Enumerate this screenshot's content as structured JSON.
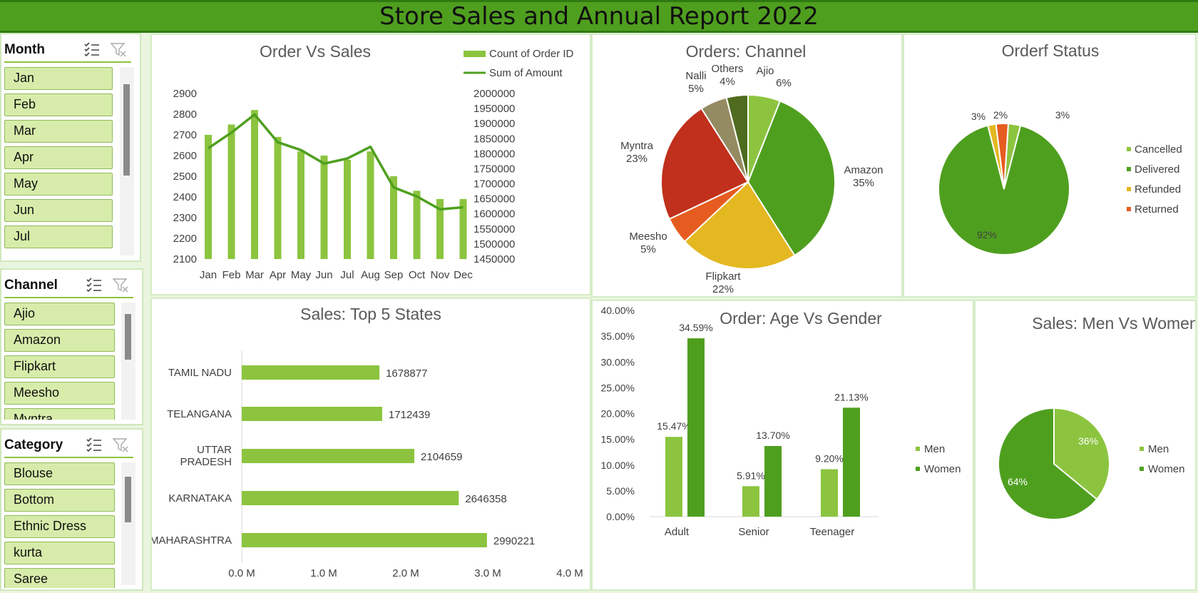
{
  "header": {
    "title": "Store Sales and Annual Report 2022"
  },
  "slicers": {
    "month": {
      "title": "Month",
      "items": [
        "Jan",
        "Feb",
        "Mar",
        "Apr",
        "May",
        "Jun",
        "Jul"
      ]
    },
    "channel": {
      "title": "Channel",
      "items": [
        "Ajio",
        "Amazon",
        "Flipkart",
        "Meesho",
        "Myntra"
      ]
    },
    "category": {
      "title": "Category",
      "items": [
        "Blouse",
        "Bottom",
        "Ethnic Dress",
        "kurta",
        "Saree"
      ]
    }
  },
  "icons": [
    "multi-select-icon",
    "clear-filter-icon"
  ],
  "colors": {
    "banner": "#4f9f1f",
    "light_green": "#8cc43f",
    "dark_green": "#4f9f1f",
    "slicer_item": "#d7ecaa",
    "myntra": "#c0301c",
    "flipkart": "#e4b821",
    "meesho": "#e65c20",
    "nalli": "#958b62",
    "others": "#4f6b1f",
    "refunded": "#e4b821",
    "returned": "#e65c20"
  },
  "chart_data": [
    {
      "id": "order_vs_sales",
      "type": "bar",
      "title": "Order Vs Sales",
      "categories": [
        "Jan",
        "Feb",
        "Mar",
        "Apr",
        "May",
        "Jun",
        "Jul",
        "Aug",
        "Sep",
        "Oct",
        "Nov",
        "Dec"
      ],
      "series": [
        {
          "name": "Count of Order ID",
          "type": "bar",
          "axis": "left",
          "values": [
            2700,
            2750,
            2820,
            2690,
            2620,
            2600,
            2580,
            2620,
            2500,
            2430,
            2390,
            2390
          ]
        },
        {
          "name": "Sum of Amount",
          "type": "line",
          "axis": "right",
          "values": [
            1818000,
            1870000,
            1930000,
            1838000,
            1812000,
            1767000,
            1784000,
            1823000,
            1688000,
            1658000,
            1615000,
            1622000
          ]
        }
      ],
      "y_left": {
        "min": 2100,
        "max": 2900,
        "ticks": [
          "2900",
          "2800",
          "2700",
          "2600",
          "2500",
          "2400",
          "2300",
          "2200",
          "2100"
        ]
      },
      "y_right": {
        "min": 1450000,
        "max": 2000000,
        "ticks": [
          "2000000",
          "1950000",
          "1900000",
          "1850000",
          "1800000",
          "1750000",
          "1700000",
          "1650000",
          "1600000",
          "1550000",
          "1500000",
          "1450000"
        ]
      },
      "legend": "top-right"
    },
    {
      "id": "orders_channel",
      "type": "pie",
      "title": "Orders: Channel",
      "slices": [
        {
          "name": "Ajio",
          "label": "6%",
          "value": 6
        },
        {
          "name": "Amazon",
          "label": "35%",
          "value": 35
        },
        {
          "name": "Flipkart",
          "label": "22%",
          "value": 22
        },
        {
          "name": "Meesho",
          "label": "5%",
          "value": 5
        },
        {
          "name": "Myntra",
          "label": "23%",
          "value": 23
        },
        {
          "name": "Nalli",
          "label": "5%",
          "value": 5
        },
        {
          "name": "Others",
          "label": "4%",
          "value": 4
        }
      ]
    },
    {
      "id": "order_status",
      "type": "pie",
      "title": "Orderf Status",
      "slices": [
        {
          "name": "Cancelled",
          "label": "3%",
          "value": 3
        },
        {
          "name": "Delivered",
          "label": "92%",
          "value": 92
        },
        {
          "name": "Refunded",
          "label": "2%",
          "value": 2
        },
        {
          "name": "Returned",
          "label": "3%",
          "value": 3
        }
      ],
      "legend": "right"
    },
    {
      "id": "top5_states",
      "type": "bar",
      "orientation": "horizontal",
      "title": "Sales: Top 5 States",
      "categories": [
        "TAMIL NADU",
        "TELANGANA",
        "UTTAR PRADESH",
        "KARNATAKA",
        "MAHARASHTRA"
      ],
      "values": [
        1678877,
        1712439,
        2104659,
        2646358,
        2990221
      ],
      "x_ticks": [
        "0.0 M",
        "1.0 M",
        "2.0 M",
        "3.0 M",
        "4.0 M"
      ],
      "xlim": [
        0,
        4000000
      ]
    },
    {
      "id": "age_vs_gender",
      "type": "bar",
      "title": "Order: Age Vs Gender",
      "categories": [
        "Adult",
        "Senior",
        "Teenager"
      ],
      "series": [
        {
          "name": "Men",
          "values": [
            15.47,
            5.91,
            9.2
          ],
          "labels": [
            "15.47%",
            "5.91%",
            "9.20%"
          ]
        },
        {
          "name": "Women",
          "values": [
            34.59,
            13.7,
            21.13
          ],
          "labels": [
            "34.59%",
            "13.70%",
            "21.13%"
          ]
        }
      ],
      "y_ticks": [
        "40.00%",
        "35.00%",
        "30.00%",
        "25.00%",
        "20.00%",
        "15.00%",
        "10.00%",
        "5.00%",
        "0.00%"
      ],
      "ylim": [
        0,
        40
      ],
      "legend": "right"
    },
    {
      "id": "men_vs_women",
      "type": "pie",
      "title": "Sales: Men Vs Women",
      "slices": [
        {
          "name": "Men",
          "label": "36%",
          "value": 36
        },
        {
          "name": "Women",
          "label": "64%",
          "value": 64
        }
      ],
      "legend": "right"
    }
  ]
}
